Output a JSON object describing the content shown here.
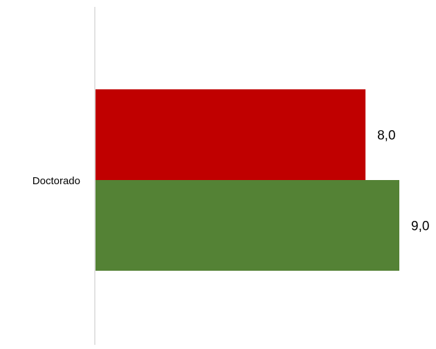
{
  "chart_data": {
    "type": "bar",
    "orientation": "horizontal",
    "categories": [
      "Doctorado"
    ],
    "series": [
      {
        "values": [
          8.0
        ],
        "color": "#c00000"
      },
      {
        "values": [
          9.0
        ],
        "color": "#548235"
      }
    ],
    "data_labels": [
      "8,0",
      "9,0"
    ],
    "xlim": [
      0,
      10
    ],
    "grid": false,
    "legend": "none",
    "axis_color": "#d9d9d9"
  }
}
